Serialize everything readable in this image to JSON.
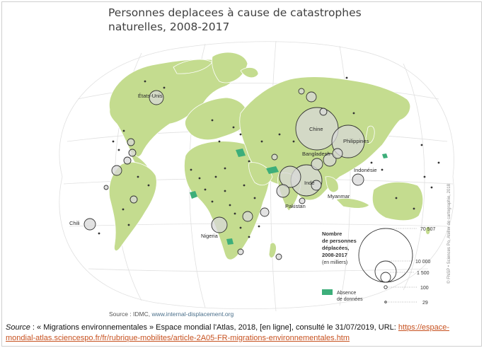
{
  "title": "Personnes deplacees à cause de catastrophes\nnaturelles, 2008-2017",
  "countries": [
    {
      "name": "États-Unis"
    },
    {
      "name": "Chine"
    },
    {
      "name": "Philippines"
    },
    {
      "name": "Bangladesh"
    },
    {
      "name": "Inde"
    },
    {
      "name": "Indonésie"
    },
    {
      "name": "Myanmar"
    },
    {
      "name": "Pakistan"
    },
    {
      "name": "Chili"
    },
    {
      "name": "Nigeria"
    }
  ],
  "legend": {
    "title_lines": [
      "Nombre",
      "de personnes",
      "déplacées,",
      "2008-2017"
    ],
    "subtitle": "(en milliers)",
    "values": [
      "70 507",
      "10 000",
      "1 500",
      "100",
      "29"
    ],
    "absence_lines": [
      "Absence",
      "de données"
    ]
  },
  "colors": {
    "land": "#c4dc8f",
    "bubble": "#d3d3d3",
    "absence": "#3dae7a",
    "ocean_grid": "#e3e3e3"
  },
  "credit": "© FNSP • Sciences Po, Atelier de cartographie, 2018",
  "source": {
    "label": "Source : IDMC, ",
    "url": "www.internal-displacement.org"
  },
  "citation": {
    "prefix": "Source",
    "text": " : « Migrations environnementales » Espace mondial l'Atlas, 2018, [en ligne], consulté le 31/07/2019, URL: ",
    "link": "https://espace-mondial-atlas.sciencespo.fr/fr/rubrique-mobilites/article-2A05-FR-migrations-environnementales.htm"
  }
}
